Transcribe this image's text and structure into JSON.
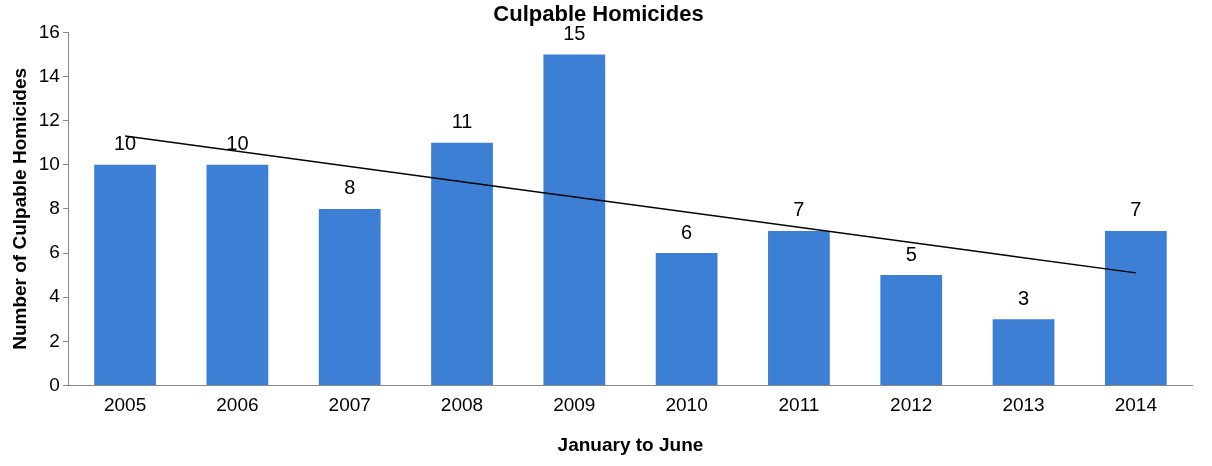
{
  "chart_data": {
    "type": "bar",
    "title": "Culpable Homicides",
    "xlabel": "January to June",
    "ylabel": "Number of Culpable Homicides",
    "categories": [
      "2005",
      "2006",
      "2007",
      "2008",
      "2009",
      "2010",
      "2011",
      "2012",
      "2013",
      "2014"
    ],
    "series": [
      {
        "color": "#3d7fd4",
        "values": [
          10,
          10,
          8,
          11,
          15,
          6,
          7,
          5,
          3,
          7
        ],
        "value_labels": [
          "10",
          "10",
          "8",
          "11",
          "15",
          "6",
          "7",
          "5",
          "3",
          "7"
        ]
      },
      {
        "type": "line",
        "color": "#000000",
        "values": [
          11.3,
          null,
          null,
          null,
          null,
          null,
          null,
          null,
          null,
          5.1
        ],
        "marker": "none"
      }
    ],
    "ylim": [
      0,
      16
    ],
    "yticks": [
      0,
      2,
      4,
      6,
      8,
      10,
      12,
      14,
      16
    ],
    "grid": false,
    "legend": false
  }
}
